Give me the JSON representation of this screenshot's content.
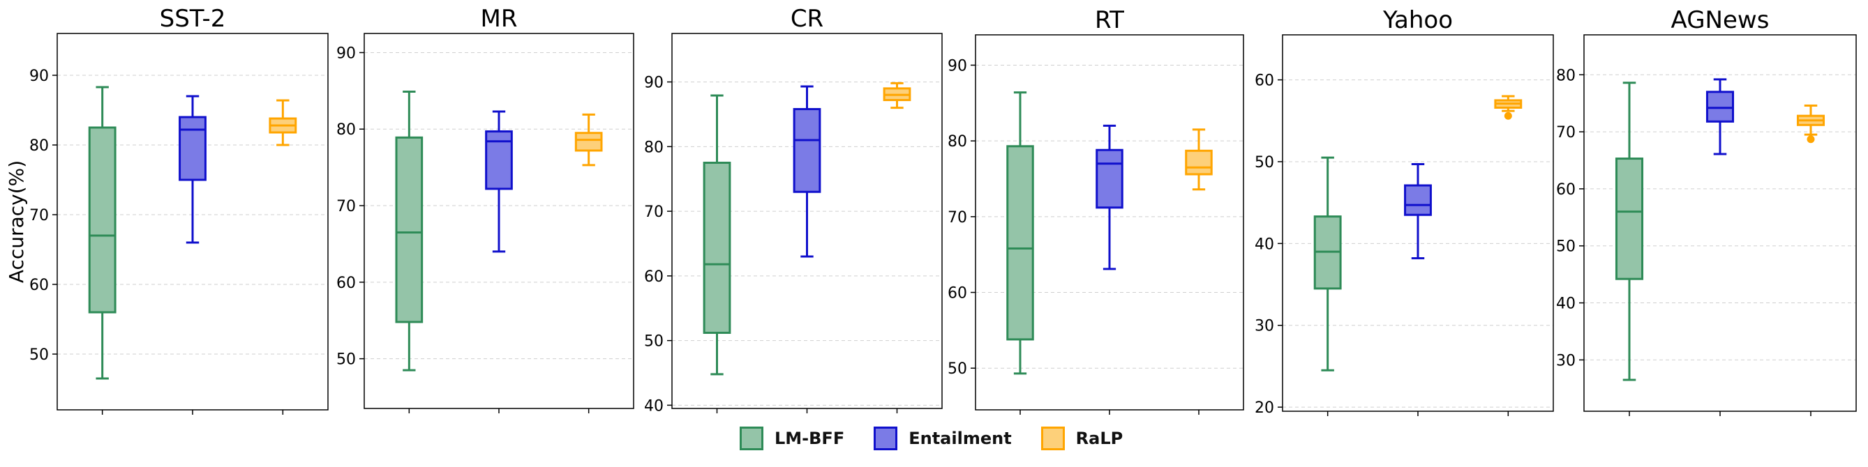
{
  "chart_data": {
    "type": "boxplot",
    "ylabel": "Accuracy(%)",
    "series_order": [
      "LM-BFF",
      "Entailment",
      "RaLP"
    ],
    "colors": {
      "LM-BFF": {
        "fill": "#94c4a8",
        "stroke": "#2e8b57"
      },
      "Entailment": {
        "fill": "#7b7be6",
        "stroke": "#1010cc"
      },
      "RaLP": {
        "fill": "#fdd07a",
        "stroke": "#ffa500"
      }
    },
    "panels": [
      {
        "title": "SST-2",
        "ylim": [
          42,
          96
        ],
        "yticks": [
          50,
          60,
          70,
          80,
          90
        ],
        "boxes": {
          "LM-BFF": {
            "whislo": 46.5,
            "q1": 56,
            "med": 67,
            "q3": 82.5,
            "whishi": 88.3,
            "fliers": []
          },
          "Entailment": {
            "whislo": 66,
            "q1": 75,
            "med": 82.2,
            "q3": 84,
            "whishi": 87,
            "fliers": []
          },
          "RaLP": {
            "whislo": 80,
            "q1": 81.8,
            "med": 82.8,
            "q3": 83.8,
            "whishi": 86.4,
            "fliers": []
          }
        }
      },
      {
        "title": "MR",
        "ylim": [
          43.5,
          92.5
        ],
        "yticks": [
          50,
          60,
          70,
          80,
          90
        ],
        "boxes": {
          "LM-BFF": {
            "whislo": 48.5,
            "q1": 54.8,
            "med": 66.5,
            "q3": 78.9,
            "whishi": 84.9,
            "fliers": []
          },
          "Entailment": {
            "whislo": 64,
            "q1": 72.2,
            "med": 78.4,
            "q3": 79.7,
            "whishi": 82.3,
            "fliers": []
          },
          "RaLP": {
            "whislo": 75.3,
            "q1": 77.2,
            "med": 78.6,
            "q3": 79.5,
            "whishi": 81.9,
            "fliers": []
          }
        }
      },
      {
        "title": "CR",
        "ylim": [
          39.5,
          97.5
        ],
        "yticks": [
          40,
          50,
          60,
          70,
          80,
          90
        ],
        "boxes": {
          "LM-BFF": {
            "whislo": 44.8,
            "q1": 51.2,
            "med": 61.8,
            "q3": 77.5,
            "whishi": 87.9,
            "fliers": []
          },
          "Entailment": {
            "whislo": 63,
            "q1": 73,
            "med": 81,
            "q3": 85.8,
            "whishi": 89.3,
            "fliers": []
          },
          "RaLP": {
            "whislo": 86,
            "q1": 87.2,
            "med": 88,
            "q3": 89,
            "whishi": 89.8,
            "fliers": []
          }
        }
      },
      {
        "title": "RT",
        "ylim": [
          44.5,
          94
        ],
        "yticks": [
          50,
          60,
          70,
          80,
          90
        ],
        "boxes": {
          "LM-BFF": {
            "whislo": 49.3,
            "q1": 53.8,
            "med": 65.8,
            "q3": 79.3,
            "whishi": 86.4,
            "fliers": []
          },
          "Entailment": {
            "whislo": 63.1,
            "q1": 71.2,
            "med": 77,
            "q3": 78.8,
            "whishi": 82,
            "fliers": []
          },
          "RaLP": {
            "whislo": 73.6,
            "q1": 75.6,
            "med": 76.5,
            "q3": 78.7,
            "whishi": 81.5,
            "fliers": []
          }
        }
      },
      {
        "title": "Yahoo",
        "ylim": [
          19.5,
          65.5
        ],
        "yticks": [
          20,
          30,
          40,
          50,
          60
        ],
        "boxes": {
          "LM-BFF": {
            "whislo": 24.5,
            "q1": 34.5,
            "med": 39,
            "q3": 43.3,
            "whishi": 50.5,
            "fliers": []
          },
          "Entailment": {
            "whislo": 38.2,
            "q1": 43.5,
            "med": 44.7,
            "q3": 47.1,
            "whishi": 49.7,
            "fliers": []
          },
          "RaLP": {
            "whislo": 56.2,
            "q1": 56.6,
            "med": 57.1,
            "q3": 57.5,
            "whishi": 58,
            "fliers": [
              55.6
            ]
          }
        }
      },
      {
        "title": "AGNews",
        "ylim": [
          21,
          87
        ],
        "yticks": [
          30,
          40,
          50,
          60,
          70,
          80
        ],
        "boxes": {
          "LM-BFF": {
            "whislo": 26.5,
            "q1": 44.2,
            "med": 56,
            "q3": 65.3,
            "whishi": 78.6,
            "fliers": []
          },
          "Entailment": {
            "whislo": 66.1,
            "q1": 71.8,
            "med": 74.2,
            "q3": 77,
            "whishi": 79.2,
            "fliers": []
          },
          "RaLP": {
            "whislo": 69.5,
            "q1": 71.2,
            "med": 72,
            "q3": 72.8,
            "whishi": 74.6,
            "fliers": [
              68.7
            ]
          }
        }
      }
    ]
  },
  "legend": {
    "items": [
      {
        "label": "LM-BFF"
      },
      {
        "label": "Entailment"
      },
      {
        "label": "RaLP"
      }
    ]
  }
}
